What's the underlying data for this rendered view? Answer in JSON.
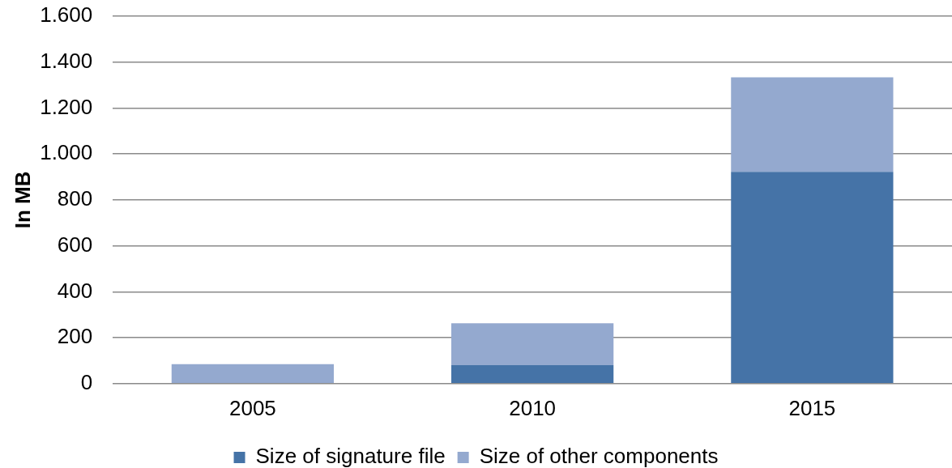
{
  "chart_data": {
    "type": "bar",
    "stacked": true,
    "ylabel": "In MB",
    "categories": [
      "2005",
      "2010",
      "2015"
    ],
    "series": [
      {
        "name": "Size of signature file",
        "color": "#4573a7",
        "values": [
          0,
          80,
          922
        ]
      },
      {
        "name": "Size of other components",
        "color": "#94a9cf",
        "values": [
          85,
          183,
          412
        ]
      }
    ],
    "ylim": [
      0,
      1600
    ],
    "yticks": [
      0,
      200,
      400,
      600,
      800,
      {
        "value": 1000,
        "label": "1.000"
      },
      {
        "value": 1200,
        "label": "1.200"
      },
      {
        "value": 1400,
        "label": "1.400"
      },
      {
        "value": 1600,
        "label": "1.600"
      }
    ],
    "grid": "y",
    "legend": "bottom"
  }
}
